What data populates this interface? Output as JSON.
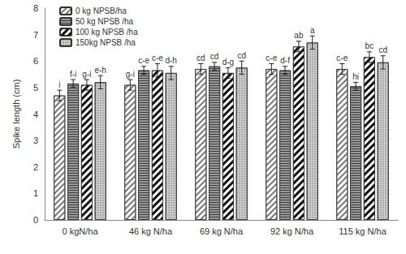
{
  "chart_data": {
    "type": "bar",
    "y_label": "Spike length (cm)",
    "categories": [
      "0 kgN/ha",
      "46 kg N/ha",
      "69 kg N/ha",
      "92 kg N/ha",
      "115 kg N/ha"
    ],
    "series": [
      {
        "name": "0 kg NPSB/ha",
        "color": "#ffffff",
        "values": [
          4.7,
          5.1,
          5.7,
          5.7,
          5.7
        ],
        "errors": [
          0.2,
          0.2,
          0.2,
          0.2,
          0.2
        ],
        "letters": [
          "i",
          "g-i",
          "cd",
          "c-e",
          "c-e"
        ]
      },
      {
        "name": "50 kg NPSB /ha",
        "color": "#9a9a9a",
        "values": [
          5.15,
          5.65,
          5.8,
          5.65,
          5.05
        ],
        "errors": [
          0.15,
          0.15,
          0.15,
          0.15,
          0.15
        ],
        "letters": [
          "f-i",
          "c-e",
          "cd",
          "d-f",
          "hi"
        ]
      },
      {
        "name": "100 kg NPSB /ha",
        "color": "#ffffff",
        "values": [
          5.1,
          5.65,
          5.55,
          6.55,
          6.15
        ],
        "errors": [
          0.2,
          0.25,
          0.2,
          0.2,
          0.2
        ],
        "letters": [
          "g-i",
          "c-e",
          "d-g",
          "ab",
          "bc"
        ]
      },
      {
        "name": "150kg NPSB /ha",
        "color": "#d0d0d0",
        "values": [
          5.2,
          5.55,
          5.75,
          6.7,
          5.95
        ],
        "errors": [
          0.25,
          0.25,
          0.25,
          0.25,
          0.25
        ],
        "letters": [
          "e-h",
          "d-h",
          "cd",
          "a",
          "cd"
        ]
      }
    ],
    "ylim": [
      0,
      8
    ],
    "yticks": [
      0,
      1,
      2,
      3,
      4,
      5,
      6,
      7,
      8
    ],
    "grid": false,
    "legend": "top-left"
  }
}
